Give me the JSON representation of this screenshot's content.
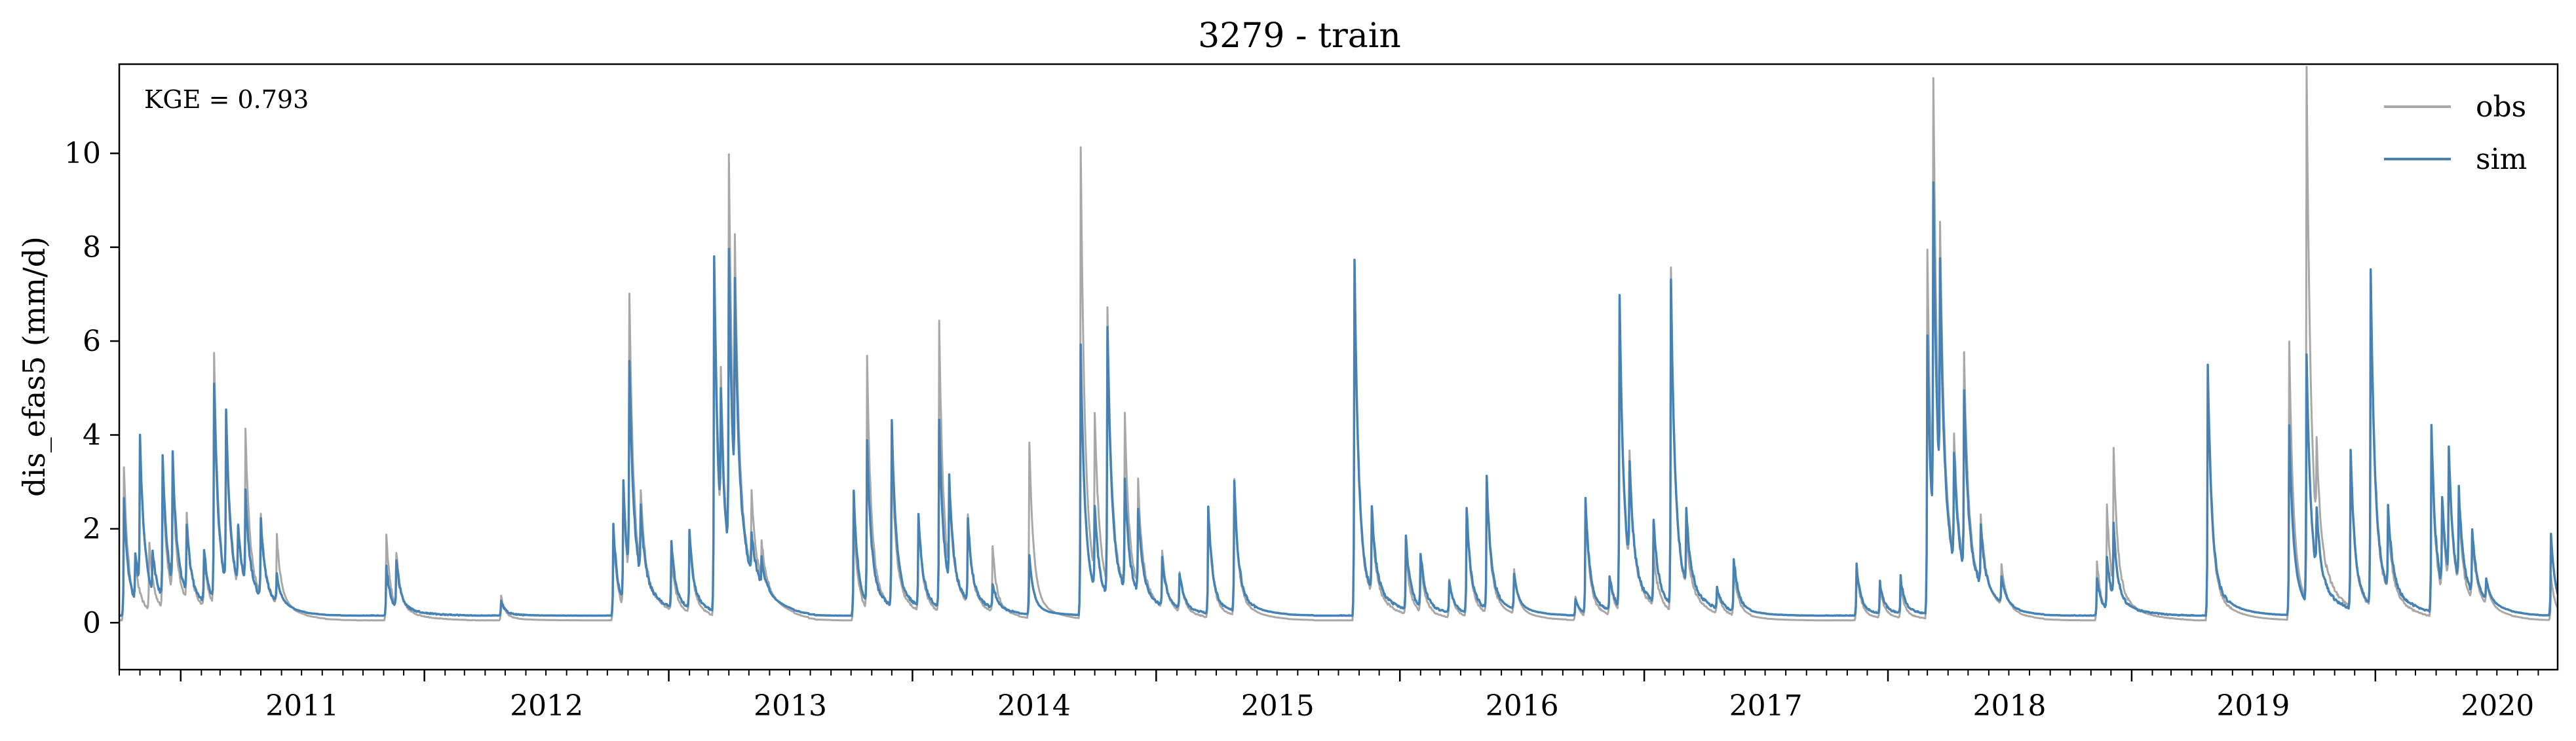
{
  "chart_data": {
    "type": "line",
    "title": "3279 - train",
    "ylabel": "dis_efas5 (mm/d)",
    "xlabel": "",
    "annotation": "KGE = 0.793",
    "xlim": [
      "2010-10-01",
      "2020-09-30"
    ],
    "ylim": [
      -1,
      11.9
    ],
    "yticks": [
      0,
      2,
      4,
      6,
      8,
      10
    ],
    "xticks": [
      "2011",
      "2012",
      "2013",
      "2014",
      "2015",
      "2016",
      "2017",
      "2018",
      "2019",
      "2020"
    ],
    "grid": false,
    "legend_position": "top-right",
    "base_obs": 0.05,
    "base_sim": 0.15,
    "series": [
      {
        "name": "obs",
        "color": "#a8a8a8",
        "peaks": [
          [
            "2010-10-08",
            3.3
          ],
          [
            "2010-10-25",
            0.9
          ],
          [
            "2010-11-15",
            1.5
          ],
          [
            "2010-12-05",
            3.0
          ],
          [
            "2010-12-20",
            2.5
          ],
          [
            "2011-01-10",
            1.9
          ],
          [
            "2011-02-05",
            1.1
          ],
          [
            "2011-02-20",
            5.4
          ],
          [
            "2011-03-10",
            3.5
          ],
          [
            "2011-03-28",
            1.4
          ],
          [
            "2011-04-08",
            3.4
          ],
          [
            "2011-05-01",
            1.8
          ],
          [
            "2011-05-25",
            1.5
          ],
          [
            "2011-11-05",
            1.9
          ],
          [
            "2011-11-20",
            1.2
          ],
          [
            "2012-04-25",
            0.55
          ],
          [
            "2012-10-10",
            1.9
          ],
          [
            "2012-10-25",
            2.6
          ],
          [
            "2012-11-03",
            6.1
          ],
          [
            "2012-11-20",
            1.8
          ],
          [
            "2013-01-05",
            1.2
          ],
          [
            "2013-02-01",
            1.7
          ],
          [
            "2013-03-10",
            7.3
          ],
          [
            "2013-03-20",
            3.5
          ],
          [
            "2013-04-01",
            8.5
          ],
          [
            "2013-04-10",
            4.9
          ],
          [
            "2013-05-05",
            1.7
          ],
          [
            "2013-05-20",
            0.9
          ],
          [
            "2013-10-05",
            2.3
          ],
          [
            "2013-10-25",
            5.4
          ],
          [
            "2013-12-01",
            3.4
          ],
          [
            "2014-01-10",
            2.1
          ],
          [
            "2014-02-10",
            6.2
          ],
          [
            "2014-02-25",
            1.9
          ],
          [
            "2014-03-25",
            1.9
          ],
          [
            "2014-05-01",
            1.4
          ],
          [
            "2014-06-25",
            3.8
          ],
          [
            "2014-09-10",
            10.1
          ],
          [
            "2014-10-01",
            3.5
          ],
          [
            "2014-10-20",
            5.9
          ],
          [
            "2014-11-15",
            3.7
          ],
          [
            "2014-12-05",
            2.3
          ],
          [
            "2015-01-10",
            1.3
          ],
          [
            "2015-02-05",
            0.9
          ],
          [
            "2015-03-20",
            2.4
          ],
          [
            "2015-04-28",
            2.9
          ],
          [
            "2015-10-25",
            7.7
          ],
          [
            "2015-11-20",
            1.7
          ],
          [
            "2016-01-10",
            1.4
          ],
          [
            "2016-02-01",
            1.1
          ],
          [
            "2016-03-15",
            0.9
          ],
          [
            "2016-04-10",
            2.3
          ],
          [
            "2016-05-10",
            2.9
          ],
          [
            "2016-06-20",
            1.0
          ],
          [
            "2016-09-20",
            0.55
          ],
          [
            "2016-10-05",
            2.4
          ],
          [
            "2016-11-10",
            0.9
          ],
          [
            "2016-11-25",
            6.6
          ],
          [
            "2016-12-10",
            2.5
          ],
          [
            "2017-01-15",
            1.2
          ],
          [
            "2017-02-10",
            7.4
          ],
          [
            "2017-03-05",
            1.2
          ],
          [
            "2017-04-20",
            0.6
          ],
          [
            "2017-05-15",
            1.1
          ],
          [
            "2017-11-15",
            1.2
          ],
          [
            "2017-12-20",
            0.7
          ],
          [
            "2018-01-20",
            0.7
          ],
          [
            "2018-03-01",
            7.9
          ],
          [
            "2018-03-10",
            9.2
          ],
          [
            "2018-03-20",
            5.2
          ],
          [
            "2018-04-10",
            2.7
          ],
          [
            "2018-04-25",
            4.6
          ],
          [
            "2018-05-20",
            1.5
          ],
          [
            "2018-06-20",
            0.9
          ],
          [
            "2018-11-10",
            1.3
          ],
          [
            "2018-11-25",
            2.3
          ],
          [
            "2018-12-05",
            3.0
          ],
          [
            "2019-04-25",
            5.3
          ],
          [
            "2019-08-25",
            6.0
          ],
          [
            "2019-09-20",
            11.4
          ],
          [
            "2019-10-05",
            1.9
          ],
          [
            "2019-11-25",
            3.3
          ],
          [
            "2019-12-25",
            7.1
          ],
          [
            "2020-01-20",
            1.7
          ],
          [
            "2020-03-25",
            3.9
          ],
          [
            "2020-04-10",
            1.9
          ],
          [
            "2020-04-20",
            2.9
          ],
          [
            "2020-05-05",
            1.7
          ],
          [
            "2020-05-25",
            1.5
          ],
          [
            "2020-06-15",
            0.6
          ],
          [
            "2020-09-20",
            1.0
          ]
        ]
      },
      {
        "name": "sim",
        "color": "#4682b4",
        "peaks": [
          [
            "2010-10-08",
            2.6
          ],
          [
            "2010-10-25",
            1.2
          ],
          [
            "2010-11-01",
            3.4
          ],
          [
            "2010-11-20",
            1.0
          ],
          [
            "2010-12-05",
            3.2
          ],
          [
            "2010-12-20",
            2.9
          ],
          [
            "2011-01-10",
            1.6
          ],
          [
            "2011-02-05",
            1.3
          ],
          [
            "2011-02-20",
            4.8
          ],
          [
            "2011-03-10",
            3.8
          ],
          [
            "2011-03-28",
            1.3
          ],
          [
            "2011-04-08",
            2.1
          ],
          [
            "2011-05-01",
            1.8
          ],
          [
            "2011-05-25",
            0.7
          ],
          [
            "2011-11-05",
            1.2
          ],
          [
            "2011-11-20",
            1.2
          ],
          [
            "2012-04-25",
            0.45
          ],
          [
            "2012-10-10",
            2.1
          ],
          [
            "2012-10-25",
            2.7
          ],
          [
            "2012-11-03",
            4.7
          ],
          [
            "2012-11-20",
            1.6
          ],
          [
            "2013-01-05",
            1.5
          ],
          [
            "2013-02-01",
            1.8
          ],
          [
            "2013-03-10",
            7.7
          ],
          [
            "2013-03-20",
            2.9
          ],
          [
            "2013-04-01",
            6.6
          ],
          [
            "2013-04-10",
            4.6
          ],
          [
            "2013-05-05",
            1.0
          ],
          [
            "2013-05-20",
            0.7
          ],
          [
            "2013-10-05",
            2.8
          ],
          [
            "2013-10-25",
            3.6
          ],
          [
            "2013-12-01",
            4.1
          ],
          [
            "2014-01-10",
            2.1
          ],
          [
            "2014-02-10",
            4.1
          ],
          [
            "2014-02-25",
            2.4
          ],
          [
            "2014-03-25",
            1.9
          ],
          [
            "2014-05-01",
            0.7
          ],
          [
            "2014-06-25",
            1.4
          ],
          [
            "2014-09-10",
            5.9
          ],
          [
            "2014-10-01",
            1.9
          ],
          [
            "2014-10-20",
            5.9
          ],
          [
            "2014-11-15",
            2.5
          ],
          [
            "2014-12-05",
            1.9
          ],
          [
            "2015-01-10",
            1.2
          ],
          [
            "2015-02-05",
            0.9
          ],
          [
            "2015-03-20",
            2.4
          ],
          [
            "2015-04-28",
            2.9
          ],
          [
            "2015-10-25",
            7.7
          ],
          [
            "2015-11-20",
            1.9
          ],
          [
            "2016-01-10",
            1.7
          ],
          [
            "2016-02-01",
            1.3
          ],
          [
            "2016-03-15",
            0.8
          ],
          [
            "2016-04-10",
            2.4
          ],
          [
            "2016-05-10",
            3.0
          ],
          [
            "2016-06-20",
            0.9
          ],
          [
            "2016-09-20",
            0.5
          ],
          [
            "2016-10-05",
            2.6
          ],
          [
            "2016-11-10",
            0.9
          ],
          [
            "2016-11-25",
            6.8
          ],
          [
            "2016-12-10",
            2.3
          ],
          [
            "2017-01-15",
            1.9
          ],
          [
            "2017-02-10",
            7.0
          ],
          [
            "2017-03-05",
            1.7
          ],
          [
            "2017-04-20",
            0.6
          ],
          [
            "2017-05-15",
            1.3
          ],
          [
            "2017-11-15",
            1.2
          ],
          [
            "2017-12-20",
            0.8
          ],
          [
            "2018-01-20",
            0.9
          ],
          [
            "2018-03-01",
            6.1
          ],
          [
            "2018-03-10",
            7.5
          ],
          [
            "2018-03-20",
            5.1
          ],
          [
            "2018-04-10",
            2.5
          ],
          [
            "2018-04-25",
            4.0
          ],
          [
            "2018-05-20",
            1.4
          ],
          [
            "2018-06-20",
            0.7
          ],
          [
            "2018-11-10",
            1.0
          ],
          [
            "2018-11-25",
            1.3
          ],
          [
            "2018-12-05",
            1.7
          ],
          [
            "2019-04-25",
            5.5
          ],
          [
            "2019-08-25",
            4.2
          ],
          [
            "2019-09-20",
            5.4
          ],
          [
            "2019-10-05",
            1.5
          ],
          [
            "2019-11-25",
            3.5
          ],
          [
            "2019-12-25",
            7.3
          ],
          [
            "2020-01-20",
            1.9
          ],
          [
            "2020-03-25",
            4.1
          ],
          [
            "2020-04-10",
            2.1
          ],
          [
            "2020-04-20",
            2.9
          ],
          [
            "2020-05-05",
            2.1
          ],
          [
            "2020-05-25",
            1.5
          ],
          [
            "2020-06-15",
            0.6
          ],
          [
            "2020-09-20",
            1.9
          ]
        ]
      }
    ]
  }
}
